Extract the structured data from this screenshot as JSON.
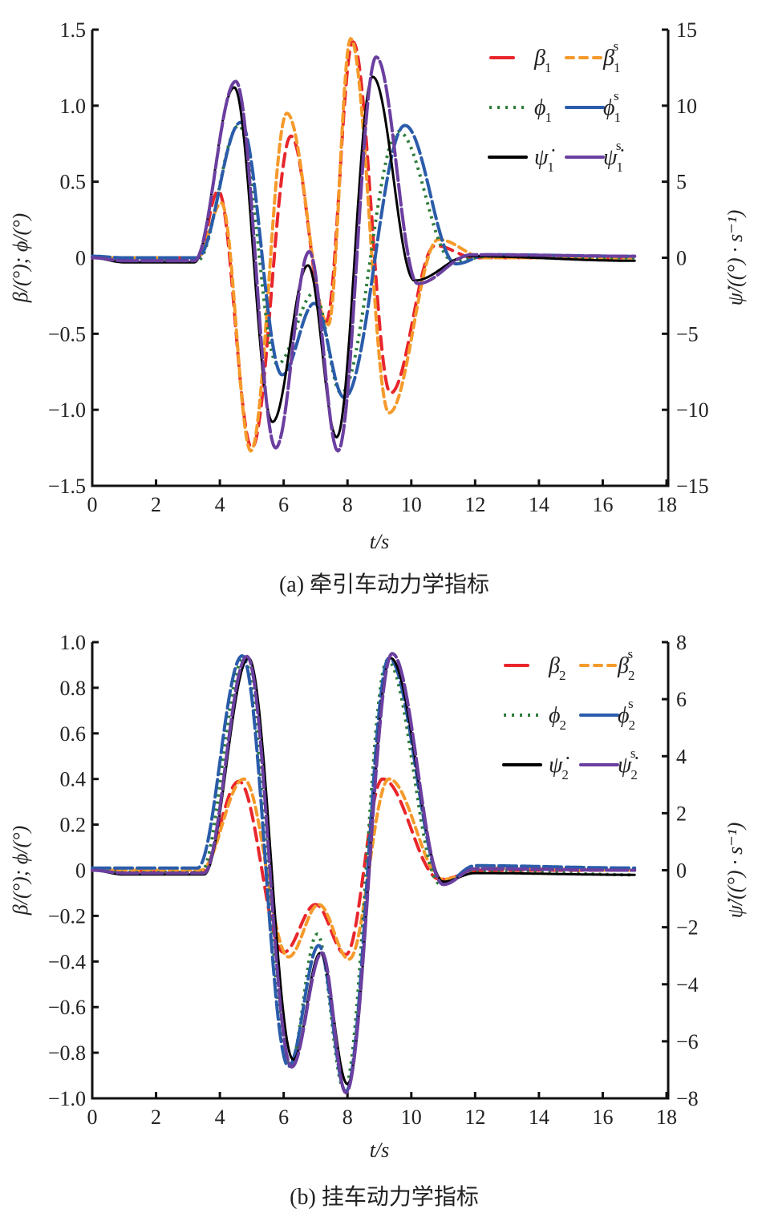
{
  "chart_data": [
    {
      "type": "line",
      "caption": "(a) 牵引车动力学指标",
      "xlabel": "t/s",
      "ylabel_left": "β/(°); ϕ/(°)",
      "ylabel_right": "ψ̇/((°) · s⁻¹)",
      "xlim": [
        0,
        18
      ],
      "ylim_left": [
        -1.5,
        1.5
      ],
      "ylim_right": [
        -15,
        15
      ],
      "x_ticks": [
        "0",
        "2",
        "4",
        "6",
        "8",
        "10",
        "12",
        "14",
        "16",
        "18"
      ],
      "y_left_ticks": [
        "1.5",
        "1.0",
        "0.5",
        "0",
        "−0.5",
        "−1.0",
        "−1.5"
      ],
      "y_right_ticks": [
        "15",
        "10",
        "5",
        "0",
        "−5",
        "−10",
        "−15"
      ],
      "legend_position": "top-right",
      "series": [
        {
          "name": "β1",
          "symbol": "β",
          "sub": "1",
          "sup": "",
          "axis": "left",
          "color": "#e8262c",
          "style": "longdash",
          "points": [
            [
              0,
              0
            ],
            [
              3.3,
              0
            ],
            [
              3.95,
              0.44
            ],
            [
              5.0,
              -1.25
            ],
            [
              6.23,
              0.8
            ],
            [
              7.33,
              -0.42
            ],
            [
              8.17,
              1.42
            ],
            [
              9.35,
              -0.89
            ],
            [
              10.75,
              0.08
            ],
            [
              12,
              0
            ],
            [
              17,
              0
            ]
          ]
        },
        {
          "name": "β1s",
          "symbol": "β",
          "sub": "1",
          "sup": "s",
          "axis": "left",
          "color": "#f59a2b",
          "style": "dash",
          "points": [
            [
              0,
              0
            ],
            [
              3.3,
              0
            ],
            [
              4.05,
              0.36
            ],
            [
              4.97,
              -1.27
            ],
            [
              6.1,
              0.95
            ],
            [
              7.4,
              -0.44
            ],
            [
              8.1,
              1.44
            ],
            [
              9.3,
              -1.02
            ],
            [
              10.85,
              0.12
            ],
            [
              12.3,
              0
            ],
            [
              17,
              0
            ]
          ]
        },
        {
          "name": "ϕ1",
          "symbol": "ϕ",
          "sub": "1",
          "sup": "",
          "axis": "left",
          "color": "#2e7d3a",
          "style": "dot",
          "points": [
            [
              0,
              0
            ],
            [
              1,
              -0.02
            ],
            [
              3.3,
              -0.02
            ],
            [
              4.6,
              0.87
            ],
            [
              5.8,
              -0.7
            ],
            [
              6.96,
              -0.23
            ],
            [
              7.8,
              -0.89
            ],
            [
              9.6,
              0.83
            ],
            [
              11.3,
              -0.02
            ],
            [
              12.5,
              0.01
            ],
            [
              17,
              0
            ]
          ]
        },
        {
          "name": "ϕ1s",
          "symbol": "ϕ",
          "sub": "1",
          "sup": "s",
          "axis": "left",
          "color": "#2a5caa",
          "style": "longdash2",
          "points": [
            [
              0,
              0.01
            ],
            [
              1,
              0
            ],
            [
              3.3,
              0
            ],
            [
              4.65,
              0.89
            ],
            [
              5.95,
              -0.77
            ],
            [
              6.96,
              -0.3
            ],
            [
              7.9,
              -0.92
            ],
            [
              9.8,
              0.87
            ],
            [
              11.4,
              -0.04
            ],
            [
              12.4,
              0.02
            ],
            [
              17,
              0.01
            ]
          ]
        },
        {
          "name": "ψ̇1",
          "symbol": "ψ̇",
          "sub": "1",
          "sup": "",
          "axis": "right",
          "color": "#000000",
          "style": "solid",
          "points": [
            [
              0,
              0
            ],
            [
              1,
              -0.3
            ],
            [
              3.2,
              -0.3
            ],
            [
              4.45,
              11.2
            ],
            [
              5.65,
              -10.8
            ],
            [
              6.76,
              -0.5
            ],
            [
              7.66,
              -11.8
            ],
            [
              8.79,
              11.9
            ],
            [
              10.1,
              -1.5
            ],
            [
              11.8,
              0.1
            ],
            [
              17,
              -0.2
            ]
          ]
        },
        {
          "name": "ψ̇1s",
          "symbol": "ψ̇",
          "sub": "1",
          "sup": "s",
          "axis": "right",
          "color": "#6b3fa0",
          "style": "longdash3",
          "points": [
            [
              0,
              0
            ],
            [
              1,
              -0.2
            ],
            [
              3.2,
              -0.2
            ],
            [
              4.5,
              11.6
            ],
            [
              5.75,
              -12.5
            ],
            [
              6.8,
              0.4
            ],
            [
              7.7,
              -12.7
            ],
            [
              8.9,
              13.2
            ],
            [
              10.2,
              -1.7
            ],
            [
              11.9,
              0.2
            ],
            [
              17,
              0.1
            ]
          ]
        }
      ]
    },
    {
      "type": "line",
      "caption": "(b) 挂车动力学指标",
      "xlabel": "t/s",
      "ylabel_left": "β/(°); ϕ/(°)",
      "ylabel_right": "ψ̇/((°) · s⁻¹)",
      "xlim": [
        0,
        18
      ],
      "ylim_left": [
        -1.0,
        1.0
      ],
      "ylim_right": [
        -8,
        8
      ],
      "x_ticks": [
        "0",
        "2",
        "4",
        "6",
        "8",
        "10",
        "12",
        "14",
        "16",
        "18"
      ],
      "y_left_ticks": [
        "1.0",
        "0.8",
        "0.6",
        "0.4",
        "0.2",
        "0",
        "−0.2",
        "−0.4",
        "−0.6",
        "−0.8",
        "−1.0"
      ],
      "y_right_ticks": [
        "8",
        "6",
        "4",
        "2",
        "0",
        "−2",
        "−4",
        "−6",
        "−8"
      ],
      "legend_position": "top-right",
      "series": [
        {
          "name": "β2",
          "symbol": "β",
          "sub": "2",
          "sup": "",
          "axis": "left",
          "color": "#e8262c",
          "style": "longdash",
          "points": [
            [
              0,
              0
            ],
            [
              3.4,
              -0.01
            ],
            [
              4.6,
              0.39
            ],
            [
              6.0,
              -0.36
            ],
            [
              7.0,
              -0.15
            ],
            [
              7.95,
              -0.37
            ],
            [
              9.1,
              0.4
            ],
            [
              10.9,
              -0.04
            ],
            [
              12.2,
              0
            ],
            [
              17,
              0
            ]
          ]
        },
        {
          "name": "β2s",
          "symbol": "β",
          "sub": "2",
          "sup": "s",
          "axis": "left",
          "color": "#f59a2b",
          "style": "dash",
          "points": [
            [
              0,
              0
            ],
            [
              3.4,
              0
            ],
            [
              4.75,
              0.4
            ],
            [
              6.15,
              -0.38
            ],
            [
              7.1,
              -0.15
            ],
            [
              8.05,
              -0.39
            ],
            [
              9.3,
              0.4
            ],
            [
              11,
              -0.04
            ],
            [
              12.2,
              0.01
            ],
            [
              17,
              0
            ]
          ]
        },
        {
          "name": "ϕ2",
          "symbol": "ϕ",
          "sub": "2",
          "sup": "",
          "axis": "left",
          "color": "#2e7d3a",
          "style": "dot",
          "points": [
            [
              0,
              0
            ],
            [
              1,
              -0.01
            ],
            [
              3.4,
              -0.01
            ],
            [
              4.75,
              0.93
            ],
            [
              6.2,
              -0.85
            ],
            [
              7.05,
              -0.28
            ],
            [
              7.9,
              -0.96
            ],
            [
              9.25,
              0.92
            ],
            [
              10.9,
              -0.06
            ],
            [
              12,
              0
            ],
            [
              17,
              -0.02
            ]
          ]
        },
        {
          "name": "ϕ2s",
          "symbol": "ϕ",
          "sub": "2",
          "sup": "s",
          "axis": "left",
          "color": "#2a5caa",
          "style": "longdash2",
          "points": [
            [
              0,
              0.01
            ],
            [
              3.3,
              0.01
            ],
            [
              4.7,
              0.94
            ],
            [
              6.15,
              -0.86
            ],
            [
              7.1,
              -0.33
            ],
            [
              7.95,
              -0.97
            ],
            [
              9.3,
              0.93
            ],
            [
              11,
              -0.06
            ],
            [
              12,
              0.02
            ],
            [
              17,
              0.01
            ]
          ]
        },
        {
          "name": "ψ̇2",
          "symbol": "ψ̇",
          "sub": "2",
          "sup": "",
          "axis": "right",
          "color": "#000000",
          "style": "solid",
          "points": [
            [
              0,
              0
            ],
            [
              1,
              -0.15
            ],
            [
              3.5,
              -0.15
            ],
            [
              4.9,
              7.44
            ],
            [
              6.3,
              -6.64
            ],
            [
              7.15,
              -2.9
            ],
            [
              8.0,
              -7.5
            ],
            [
              9.35,
              7.44
            ],
            [
              11,
              -0.4
            ],
            [
              12,
              -0.1
            ],
            [
              17,
              -0.16
            ]
          ]
        },
        {
          "name": "ψ̇2s",
          "symbol": "ψ̇",
          "sub": "2",
          "sup": "s",
          "axis": "right",
          "color": "#6b3fa0",
          "style": "longdash3",
          "points": [
            [
              0,
              0
            ],
            [
              1,
              -0.1
            ],
            [
              3.5,
              -0.1
            ],
            [
              4.85,
              7.5
            ],
            [
              6.25,
              -6.9
            ],
            [
              7.2,
              -2.9
            ],
            [
              7.95,
              -7.8
            ],
            [
              9.4,
              7.6
            ],
            [
              11,
              -0.5
            ],
            [
              12,
              0.05
            ],
            [
              17,
              0
            ]
          ]
        }
      ]
    }
  ]
}
